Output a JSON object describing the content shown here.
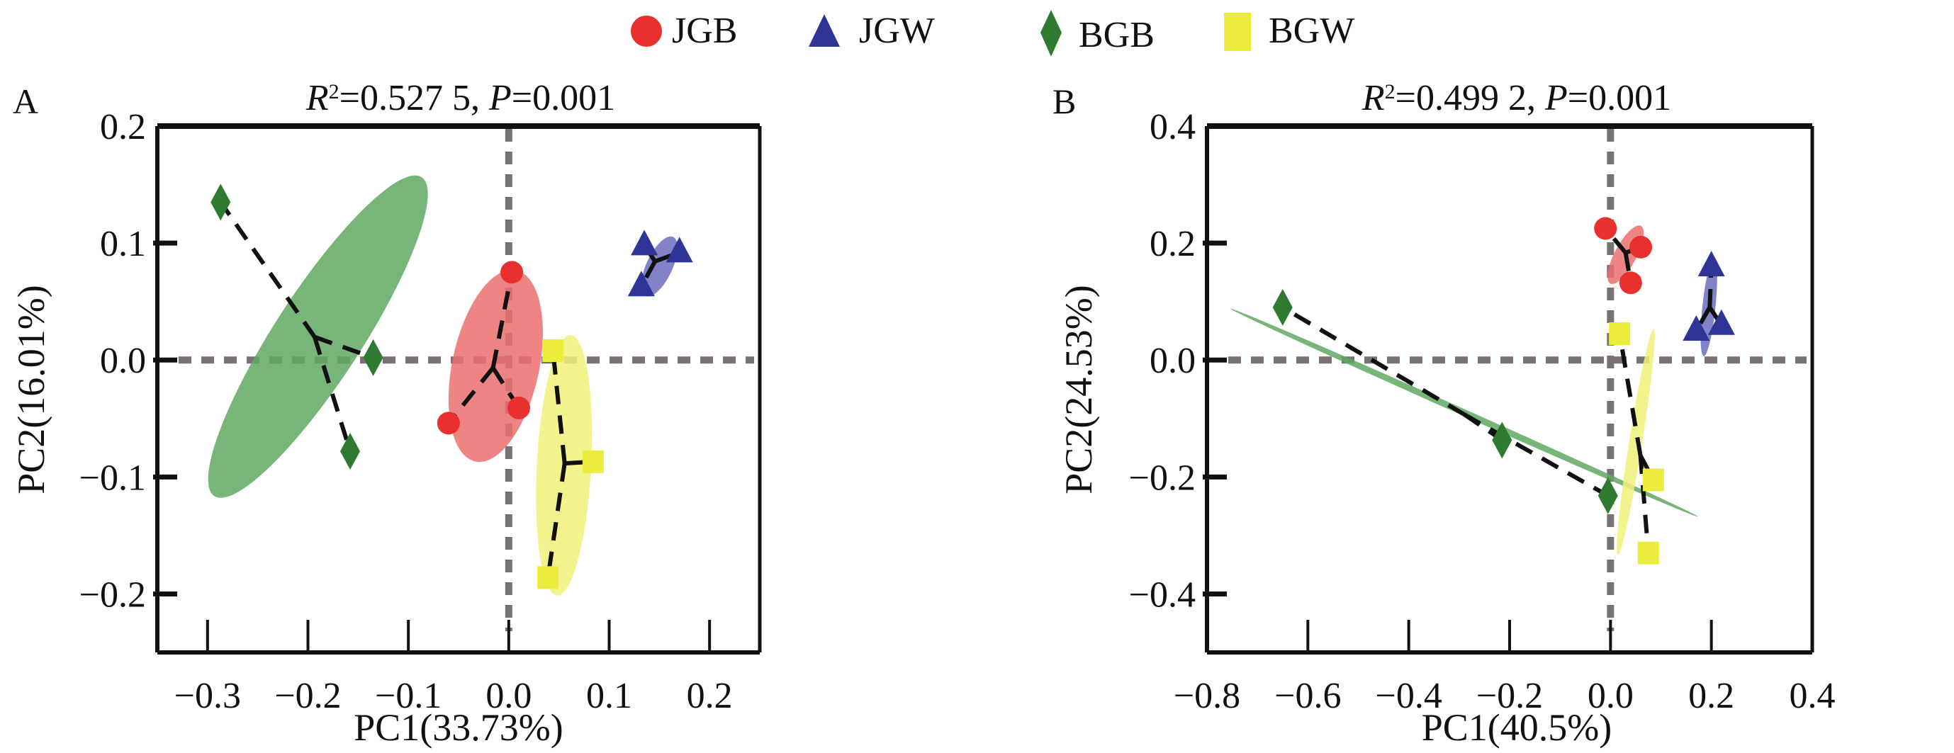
{
  "legend": [
    {
      "name": "JGB",
      "color": "#e8312d",
      "marker": "circle"
    },
    {
      "name": "JGW",
      "color": "#2f3596",
      "marker": "triangle"
    },
    {
      "name": "BGB",
      "color": "#2e7a30",
      "marker": "diamond"
    },
    {
      "name": "BGW",
      "color": "#ecec3c",
      "marker": "square"
    }
  ],
  "ellipse_colors": {
    "JGB": "#ec6e6e",
    "JGW": "#6c6cc0",
    "BGB": "#5fa862",
    "BGW": "#f1f17a"
  },
  "chart_data": [
    {
      "type": "scatter",
      "panel_label": "A",
      "title_r2_symbol": "R",
      "title_r2_sup": "2",
      "title_r2_value": "=0.527 5, ",
      "title_p_symbol": "P",
      "title_p_value": "=0.001",
      "xlabel": "PC1(33.73%)",
      "ylabel": "PC2(16.01%)",
      "xlim": [
        -0.35,
        0.25
      ],
      "ylim": [
        -0.25,
        0.2
      ],
      "xticks": [
        -0.3,
        -0.2,
        -0.1,
        0.0,
        0.1,
        0.2
      ],
      "xtick_labels": [
        "−0.3",
        "−0.2",
        "−0.1",
        "0.0",
        "0.1",
        "0.2"
      ],
      "yticks": [
        0.2,
        0.1,
        0.0,
        -0.1,
        -0.2
      ],
      "ytick_labels": [
        "0.2",
        "0.1",
        "0.0",
        "−0.1",
        "−0.2"
      ],
      "reference_lines": {
        "x": 0,
        "y": 0
      },
      "series": [
        {
          "name": "BGB",
          "points": [
            [
              -0.287,
              0.135
            ],
            [
              -0.135,
              0.002
            ],
            [
              -0.158,
              -0.078
            ]
          ],
          "ellipse": {
            "cx": -0.19,
            "cy": 0.02,
            "rx": 0.175,
            "ry": 0.04,
            "angle": -57
          }
        },
        {
          "name": "JGB",
          "points": [
            [
              0.003,
              0.075
            ],
            [
              -0.06,
              -0.054
            ],
            [
              0.01,
              -0.041
            ]
          ],
          "ellipse": {
            "cx": -0.013,
            "cy": -0.005,
            "rx": 0.09,
            "ry": 0.04,
            "angle": -78
          }
        },
        {
          "name": "BGW",
          "points": [
            [
              0.044,
              0.008
            ],
            [
              0.084,
              -0.087
            ],
            [
              0.039,
              -0.186
            ]
          ],
          "ellipse": {
            "cx": 0.055,
            "cy": -0.09,
            "rx": 0.12,
            "ry": 0.025,
            "angle": -87
          }
        },
        {
          "name": "JGW",
          "points": [
            [
              0.135,
              0.098
            ],
            [
              0.17,
              0.092
            ],
            [
              0.132,
              0.063
            ]
          ],
          "ellipse": {
            "cx": 0.15,
            "cy": 0.08,
            "rx": 0.03,
            "ry": 0.012,
            "angle": -65
          }
        }
      ]
    },
    {
      "type": "scatter",
      "panel_label": "B",
      "title_r2_symbol": "R",
      "title_r2_sup": "2",
      "title_r2_value": "=0.499 2, ",
      "title_p_symbol": "P",
      "title_p_value": "=0.001",
      "xlabel": "PC1(40.5%)",
      "ylabel": "PC2(24.53%)",
      "xlim": [
        -0.8,
        0.4
      ],
      "ylim": [
        -0.5,
        0.4
      ],
      "xticks": [
        -0.8,
        -0.6,
        -0.4,
        -0.2,
        0.0,
        0.2,
        0.4
      ],
      "xtick_labels": [
        "−0.8",
        "−0.6",
        "−0.4",
        "−0.2",
        "0.0",
        "0.2",
        "0.4"
      ],
      "yticks": [
        0.4,
        0.2,
        0.0,
        -0.2,
        -0.4
      ],
      "ytick_labels": [
        "0.4",
        "0.2",
        "0.0",
        "−0.2",
        "−0.4"
      ],
      "reference_lines": {
        "x": 0,
        "y": 0
      },
      "series": [
        {
          "name": "BGB",
          "points": [
            [
              -0.65,
              0.09
            ],
            [
              -0.215,
              -0.137
            ],
            [
              -0.005,
              -0.232
            ]
          ],
          "ellipse": {
            "cx": -0.29,
            "cy": -0.09,
            "rx": 0.47,
            "ry": 0.006,
            "angle": 24
          }
        },
        {
          "name": "JGB",
          "points": [
            [
              -0.01,
              0.225
            ],
            [
              0.06,
              0.193
            ],
            [
              0.04,
              0.132
            ]
          ],
          "ellipse": {
            "cx": 0.03,
            "cy": 0.18,
            "rx": 0.06,
            "ry": 0.02,
            "angle": -62
          }
        },
        {
          "name": "JGW",
          "points": [
            [
              0.2,
              0.16
            ],
            [
              0.17,
              0.05
            ],
            [
              0.22,
              0.06
            ]
          ],
          "ellipse": {
            "cx": 0.195,
            "cy": 0.09,
            "rx": 0.09,
            "ry": 0.012,
            "angle": -84
          }
        },
        {
          "name": "BGW",
          "points": [
            [
              0.018,
              0.045
            ],
            [
              0.085,
              -0.205
            ],
            [
              0.075,
              -0.33
            ]
          ],
          "ellipse": {
            "cx": 0.05,
            "cy": -0.14,
            "rx": 0.21,
            "ry": 0.012,
            "angle": -81
          }
        }
      ]
    }
  ]
}
